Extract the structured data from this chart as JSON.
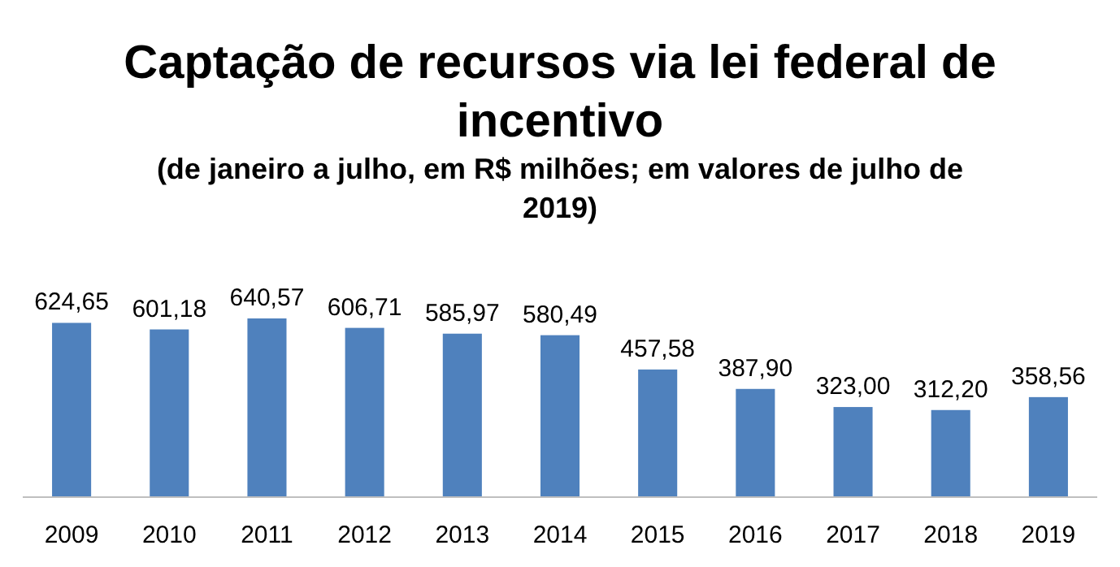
{
  "chart_data": {
    "type": "bar",
    "title": "Captação de recursos via lei federal de incentivo",
    "subtitle": "(de janeiro a julho, em R$ milhões; em valores de julho de 2019)",
    "categories": [
      "2009",
      "2010",
      "2011",
      "2012",
      "2013",
      "2014",
      "2015",
      "2016",
      "2017",
      "2018",
      "2019"
    ],
    "values": [
      624.65,
      601.18,
      640.57,
      606.71,
      585.97,
      580.49,
      457.58,
      387.9,
      323.0,
      312.2,
      358.56
    ],
    "value_labels": [
      "624,65",
      "601,18",
      "640,57",
      "606,71",
      "585,97",
      "580,49",
      "457,58",
      "387,90",
      "323,00",
      "312,20",
      "358,56"
    ],
    "color": "#4f81bd"
  }
}
